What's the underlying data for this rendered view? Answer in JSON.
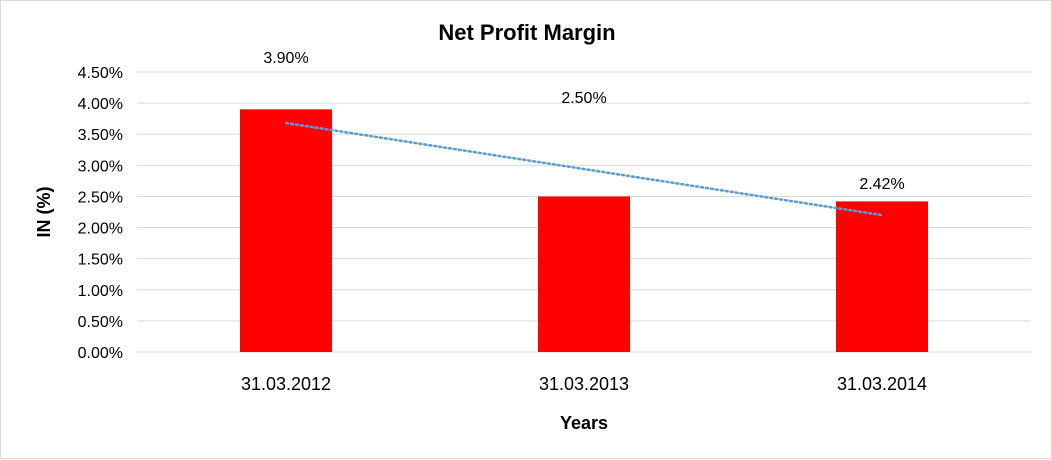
{
  "chart_data": {
    "type": "bar",
    "title": "Net Profit Margin",
    "xlabel": "Years",
    "ylabel": "IN (%)",
    "categories": [
      "31.03.2012",
      "31.03.2013",
      "31.03.2014"
    ],
    "values": [
      3.9,
      2.5,
      2.42
    ],
    "data_labels": [
      "3.90%",
      "2.50%",
      "2.42%"
    ],
    "ylim": [
      0,
      4.5
    ],
    "y_ticks": [
      0,
      0.5,
      1.0,
      1.5,
      2.0,
      2.5,
      3.0,
      3.5,
      4.0,
      4.5
    ],
    "y_tick_labels": [
      "0.00%",
      "0.50%",
      "1.00%",
      "1.50%",
      "2.00%",
      "2.50%",
      "3.00%",
      "3.50%",
      "4.00%",
      "4.50%"
    ],
    "grid": true,
    "legend": "none",
    "bar_color": "#ff0000",
    "trendline": {
      "type": "linear",
      "style": "dotted",
      "color": "#5b9bd5"
    }
  }
}
